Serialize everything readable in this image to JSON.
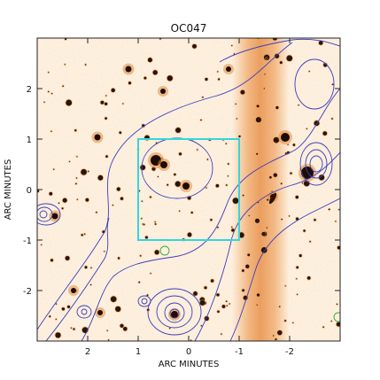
{
  "chart_data": {
    "type": "image",
    "title": "OC047",
    "xlabel": "ARC MINUTES",
    "ylabel": "ARC MINUTES",
    "xlim": [
      3,
      -3
    ],
    "ylim": [
      -3,
      3
    ],
    "x_tick_labels": [
      {
        "value": 2,
        "label": "2"
      },
      {
        "value": 1,
        "label": "1"
      },
      {
        "value": 0,
        "label": "0"
      },
      {
        "value": -1,
        "label": "-1"
      },
      {
        "value": -2,
        "label": "-2"
      }
    ],
    "y_tick_labels": [
      {
        "value": 2,
        "label": "2"
      },
      {
        "value": 1,
        "label": "1"
      },
      {
        "value": 0,
        "label": "0"
      },
      {
        "value": -1,
        "label": "-1"
      },
      {
        "value": -2,
        "label": "-2"
      }
    ],
    "box": {
      "x": [
        1,
        -1
      ],
      "y": [
        1,
        -1
      ],
      "color": "#33d6dc"
    },
    "contour_color": "#3a3dbd",
    "marker_color": "#2eaa3a",
    "background_tone": "#f3b06a",
    "grid": false
  }
}
